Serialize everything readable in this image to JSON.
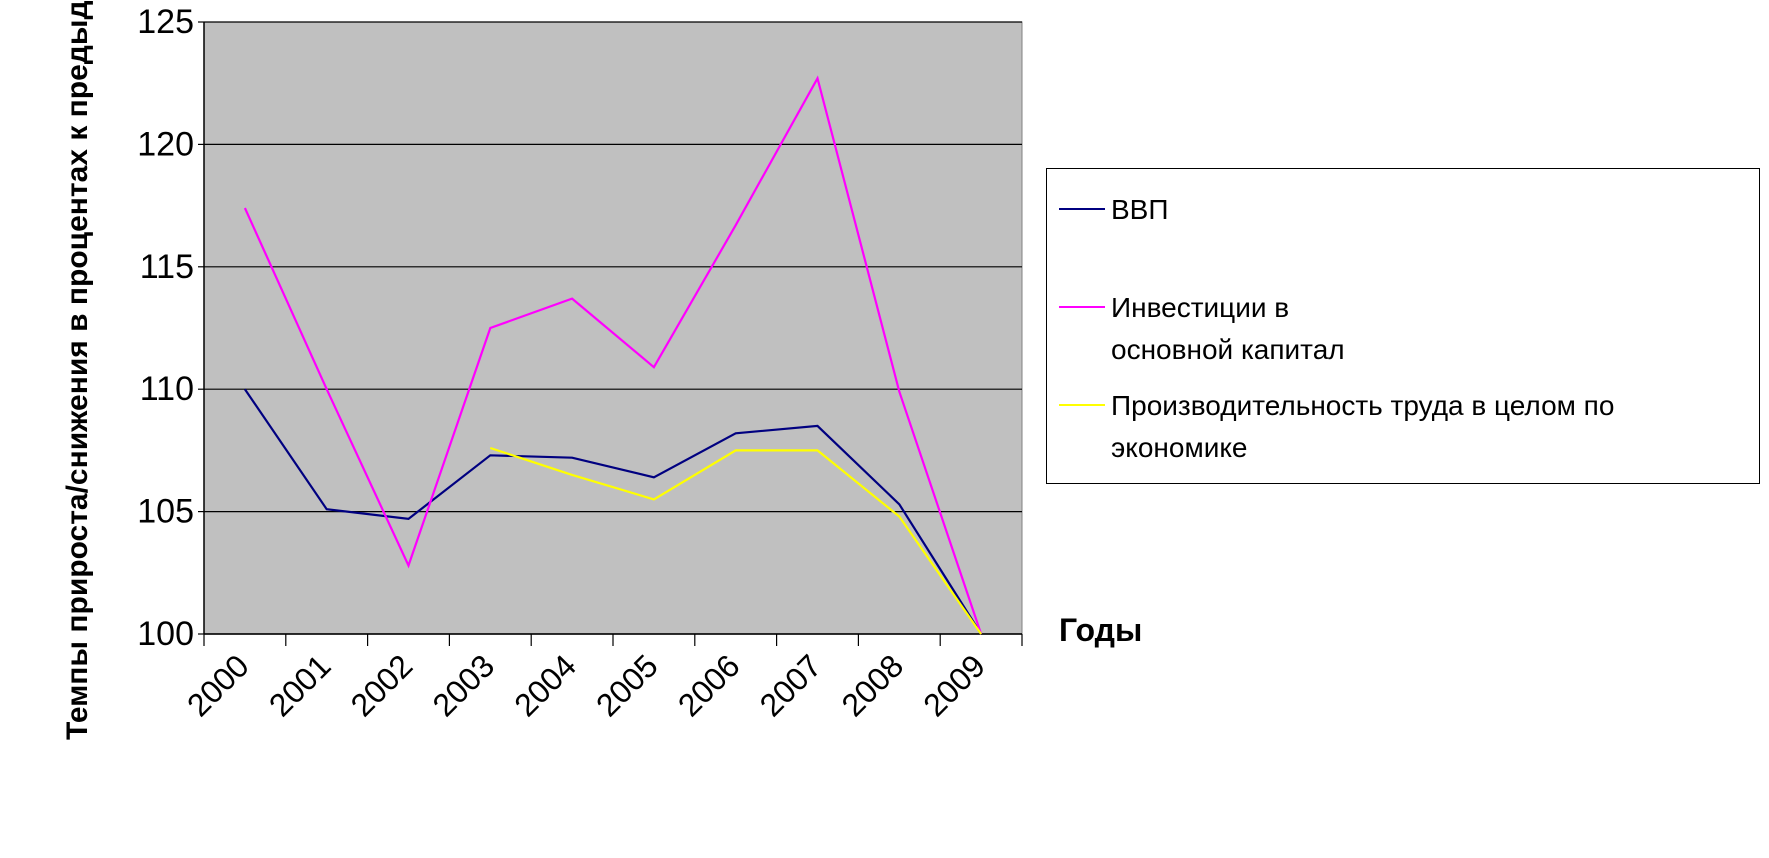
{
  "chart_data": {
    "type": "line",
    "x": [
      "2000",
      "2001",
      "2002",
      "2003",
      "2004",
      "2005",
      "2006",
      "2007",
      "2008",
      "2009"
    ],
    "ylim": [
      100,
      125
    ],
    "yticks": [
      100,
      105,
      110,
      115,
      120,
      125
    ],
    "ylabel": "Темпы прироста/снижения в процентах к предыдущему году",
    "xlabel": "Годы",
    "grid": true,
    "legend_position": "right",
    "plot_background": "#c0c0c0",
    "series": [
      {
        "name": "ВВП",
        "color": "#000080",
        "values": [
          110.0,
          105.1,
          104.7,
          107.3,
          107.2,
          106.4,
          108.2,
          108.5,
          105.3,
          100.0
        ]
      },
      {
        "name": "Инвестиции в основной капитал",
        "color": "#ff00ff",
        "values": [
          117.4,
          110.0,
          102.8,
          112.5,
          113.7,
          110.9,
          116.7,
          122.7,
          109.9,
          100.0
        ]
      },
      {
        "name": "Производительность труда в целом по экономике",
        "color": "#ffff00",
        "values": [
          null,
          null,
          null,
          107.6,
          106.5,
          105.5,
          107.5,
          107.5,
          104.8,
          100.0
        ]
      }
    ]
  }
}
